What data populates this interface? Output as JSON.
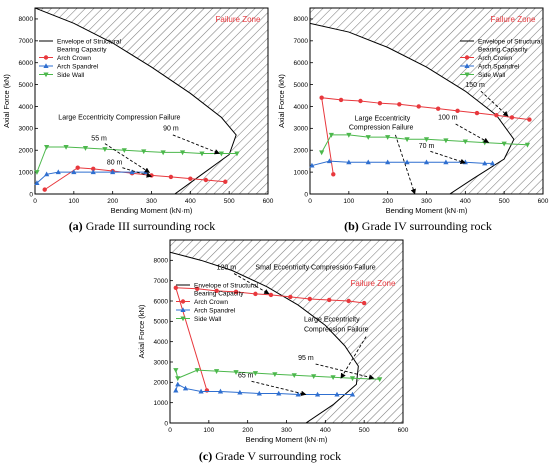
{
  "colors": {
    "arch_crown": "#e8383d",
    "arch_spandrel": "#2f6fd0",
    "side_wall": "#4cb84c",
    "envelope": "#000000",
    "hatch": "#7a7a7a",
    "failure_zone": "#e8383d",
    "arrow": "#000000"
  },
  "chart_data": [
    {
      "type": "line",
      "caption_bold": "(a)",
      "caption_text": " Grade III surrounding rock",
      "xlabel": "Bending Moment (kN·m)",
      "ylabel": "Axial Force (kN)",
      "xlim": [
        0,
        600
      ],
      "ylim": [
        0,
        8500
      ],
      "xticks": [
        0,
        100,
        200,
        300,
        400,
        500,
        600
      ],
      "yticks": [
        0,
        1000,
        2000,
        3000,
        4000,
        5000,
        6000,
        7000,
        8000
      ],
      "failure_zone_label": "Failure Zone",
      "legend": [
        {
          "label": "Envelope of Structural",
          "label2": "Bearing Capacity",
          "kind": "envelope"
        },
        {
          "label": "Arch Crown",
          "kind": "series",
          "series": 0
        },
        {
          "label": "Arch Spandrel",
          "kind": "series",
          "series": 1
        },
        {
          "label": "Side Wall",
          "kind": "series",
          "series": 2
        }
      ],
      "envelope": [
        [
          0,
          8500
        ],
        [
          100,
          7800
        ],
        [
          200,
          6900
        ],
        [
          300,
          5800
        ],
        [
          400,
          4600
        ],
        [
          480,
          3500
        ],
        [
          518,
          2700
        ],
        [
          500,
          1800
        ],
        [
          430,
          900
        ],
        [
          360,
          0
        ]
      ],
      "series": [
        {
          "name": "Arch Crown",
          "marker": "circle",
          "points": [
            [
              25,
              200
            ],
            [
              110,
              1200
            ],
            [
              150,
              1150
            ],
            [
              200,
              1050
            ],
            [
              250,
              950
            ],
            [
              300,
              850
            ],
            [
              350,
              780
            ],
            [
              400,
              700
            ],
            [
              440,
              640
            ],
            [
              490,
              560
            ]
          ]
        },
        {
          "name": "Arch Spandrel",
          "marker": "triangle-up",
          "points": [
            [
              5,
              500
            ],
            [
              30,
              900
            ],
            [
              60,
              1000
            ],
            [
              100,
              1000
            ],
            [
              150,
              1000
            ],
            [
              200,
              1000
            ],
            [
              250,
              1000
            ],
            [
              285,
              1000
            ]
          ]
        },
        {
          "name": "Side Wall",
          "marker": "triangle-down",
          "points": [
            [
              5,
              1000
            ],
            [
              30,
              2150
            ],
            [
              80,
              2150
            ],
            [
              130,
              2100
            ],
            [
              180,
              2050
            ],
            [
              230,
              2000
            ],
            [
              280,
              1950
            ],
            [
              330,
              1900
            ],
            [
              380,
              1900
            ],
            [
              430,
              1850
            ],
            [
              480,
              1850
            ],
            [
              520,
              1850
            ]
          ]
        }
      ],
      "annotations": [
        {
          "text": "Large Eccentricity Compression  Failure",
          "tx": 60,
          "ty": 3400,
          "anchor": "start"
        },
        {
          "text": "90 m",
          "tx": 330,
          "ty": 2900,
          "anchor": "start",
          "ax": 355,
          "ay": 2700,
          "bx": 475,
          "by": 1850
        },
        {
          "text": "55 m",
          "tx": 145,
          "ty": 2450,
          "anchor": "start",
          "ax": 180,
          "ay": 2300,
          "bx": 295,
          "by": 980
        },
        {
          "text": "80 m",
          "tx": 185,
          "ty": 1350,
          "anchor": "start",
          "ax": 225,
          "ay": 1200,
          "bx": 300,
          "by": 800
        }
      ]
    },
    {
      "type": "line",
      "caption_bold": "(b)",
      "caption_text": " Grade IV surrounding rock",
      "xlabel": "Bending Moment (kN·m)",
      "ylabel": "Axial Force (kN)",
      "xlim": [
        0,
        600
      ],
      "ylim": [
        0,
        8500
      ],
      "xticks": [
        0,
        100,
        200,
        300,
        400,
        500,
        600
      ],
      "yticks": [
        0,
        1000,
        2000,
        3000,
        4000,
        5000,
        6000,
        7000,
        8000
      ],
      "failure_zone_label": "Failure Zone",
      "legend": [
        {
          "label": "Envelope of Structural",
          "label2": "Bearing Capacity",
          "kind": "envelope"
        },
        {
          "label": "Arch Crown",
          "kind": "series",
          "series": 0
        },
        {
          "label": "Arch Spandrel",
          "kind": "series",
          "series": 1
        },
        {
          "label": "Side Wall",
          "kind": "series",
          "series": 2
        }
      ],
      "envelope": [
        [
          0,
          7800
        ],
        [
          100,
          7400
        ],
        [
          200,
          6700
        ],
        [
          300,
          5800
        ],
        [
          400,
          4700
        ],
        [
          480,
          3600
        ],
        [
          525,
          2500
        ],
        [
          500,
          1600
        ],
        [
          420,
          700
        ],
        [
          360,
          0
        ]
      ],
      "series": [
        {
          "name": "Arch Crown",
          "marker": "circle",
          "points": [
            [
              60,
              900
            ],
            [
              30,
              4400
            ],
            [
              80,
              4300
            ],
            [
              130,
              4250
            ],
            [
              180,
              4150
            ],
            [
              230,
              4100
            ],
            [
              280,
              4000
            ],
            [
              330,
              3900
            ],
            [
              380,
              3800
            ],
            [
              430,
              3700
            ],
            [
              480,
              3600
            ],
            [
              520,
              3500
            ],
            [
              565,
              3400
            ]
          ]
        },
        {
          "name": "Arch Spandrel",
          "marker": "triangle-up",
          "points": [
            [
              5,
              1300
            ],
            [
              50,
              1500
            ],
            [
              100,
              1450
            ],
            [
              150,
              1450
            ],
            [
              200,
              1450
            ],
            [
              250,
              1450
            ],
            [
              300,
              1450
            ],
            [
              350,
              1450
            ],
            [
              400,
              1450
            ],
            [
              450,
              1400
            ],
            [
              470,
              1400
            ]
          ]
        },
        {
          "name": "Side Wall",
          "marker": "triangle-down",
          "points": [
            [
              30,
              1900
            ],
            [
              55,
              2700
            ],
            [
              100,
              2700
            ],
            [
              150,
              2600
            ],
            [
              200,
              2600
            ],
            [
              250,
              2500
            ],
            [
              300,
              2500
            ],
            [
              350,
              2450
            ],
            [
              400,
              2400
            ],
            [
              450,
              2350
            ],
            [
              500,
              2300
            ],
            [
              560,
              2250
            ]
          ]
        }
      ],
      "annotations": [
        {
          "text": "Large Eccentricity",
          "tx": 115,
          "ty": 3350,
          "anchor": "start"
        },
        {
          "text": "Compression  Failure",
          "tx": 100,
          "ty": 2950,
          "anchor": "start",
          "ax": 220,
          "ay": 2700,
          "bx": 270,
          "by": 0
        },
        {
          "text": "150 m",
          "tx": 400,
          "ty": 4900,
          "anchor": "start",
          "ax": 440,
          "ay": 4700,
          "bx": 510,
          "by": 3550
        },
        {
          "text": "100 m",
          "tx": 330,
          "ty": 3400,
          "anchor": "start",
          "ax": 375,
          "ay": 3200,
          "bx": 460,
          "by": 2350
        },
        {
          "text": "70 m",
          "tx": 280,
          "ty": 2100,
          "anchor": "start",
          "ax": 310,
          "ay": 1950,
          "bx": 400,
          "by": 1420
        }
      ]
    },
    {
      "type": "line",
      "caption_bold": "(c)",
      "caption_text": " Grade V surrounding rock",
      "xlabel": "Bending Moment (kN·m)",
      "ylabel": "Axial Force (kN)",
      "xlim": [
        0,
        600
      ],
      "ylim": [
        0,
        9000
      ],
      "xticks": [
        0,
        100,
        200,
        300,
        400,
        500,
        600
      ],
      "yticks": [
        0,
        1000,
        2000,
        3000,
        4000,
        5000,
        6000,
        7000,
        8000
      ],
      "failure_zone_label": "Failure Zone",
      "legend": [
        {
          "label": "Envelope of Structural",
          "label2": "Bearing Capacity",
          "kind": "envelope"
        },
        {
          "label": "Arch Crown",
          "kind": "series",
          "series": 0
        },
        {
          "label": "Arch Spandrel",
          "kind": "series",
          "series": 1
        },
        {
          "label": "Side Wall",
          "kind": "series",
          "series": 2
        }
      ],
      "envelope": [
        [
          0,
          8400
        ],
        [
          80,
          8000
        ],
        [
          160,
          7500
        ],
        [
          250,
          6700
        ],
        [
          330,
          5800
        ],
        [
          400,
          4800
        ],
        [
          450,
          3800
        ],
        [
          485,
          2800
        ],
        [
          480,
          1900
        ],
        [
          420,
          900
        ],
        [
          350,
          0
        ]
      ],
      "series": [
        {
          "name": "Arch Crown",
          "marker": "circle",
          "points": [
            [
              95,
              1600
            ],
            [
              15,
              6650
            ],
            [
              70,
              6600
            ],
            [
              120,
              6500
            ],
            [
              170,
              6450
            ],
            [
              220,
              6350
            ],
            [
              260,
              6300
            ],
            [
              310,
              6200
            ],
            [
              360,
              6100
            ],
            [
              410,
              6050
            ],
            [
              460,
              6000
            ],
            [
              500,
              5900
            ]
          ]
        },
        {
          "name": "Arch Spandrel",
          "marker": "triangle-up",
          "points": [
            [
              15,
              1600
            ],
            [
              20,
              1900
            ],
            [
              40,
              1700
            ],
            [
              80,
              1550
            ],
            [
              130,
              1550
            ],
            [
              180,
              1500
            ],
            [
              230,
              1450
            ],
            [
              280,
              1450
            ],
            [
              330,
              1400
            ],
            [
              380,
              1400
            ],
            [
              430,
              1400
            ],
            [
              470,
              1400
            ]
          ]
        },
        {
          "name": "Side Wall",
          "marker": "triangle-down",
          "points": [
            [
              15,
              2600
            ],
            [
              20,
              2200
            ],
            [
              70,
              2600
            ],
            [
              120,
              2550
            ],
            [
              170,
              2500
            ],
            [
              220,
              2450
            ],
            [
              270,
              2400
            ],
            [
              320,
              2350
            ],
            [
              370,
              2300
            ],
            [
              420,
              2250
            ],
            [
              470,
              2200
            ],
            [
              540,
              2150
            ]
          ]
        }
      ],
      "annotations": [
        {
          "text": "120 m",
          "tx": 120,
          "ty": 7550,
          "anchor": "start",
          "ax": 165,
          "ay": 7350,
          "bx": 255,
          "by": 6350
        },
        {
          "text": "Smal Eccentricity Compression  Failure",
          "tx": 220,
          "ty": 7550,
          "anchor": "start"
        },
        {
          "text": "Large Eccentricity",
          "tx": 345,
          "ty": 5000,
          "anchor": "start"
        },
        {
          "text": "Compression  Failure",
          "tx": 345,
          "ty": 4500,
          "anchor": "start",
          "ax": 505,
          "ay": 4250,
          "bx": 440,
          "by": 2200
        },
        {
          "text": "95 m",
          "tx": 330,
          "ty": 3100,
          "anchor": "start",
          "ax": 375,
          "ay": 2900,
          "bx": 525,
          "by": 2200
        },
        {
          "text": "65 m",
          "tx": 175,
          "ty": 2250,
          "anchor": "start",
          "ax": 210,
          "ay": 2050,
          "bx": 350,
          "by": 1400
        }
      ]
    }
  ]
}
